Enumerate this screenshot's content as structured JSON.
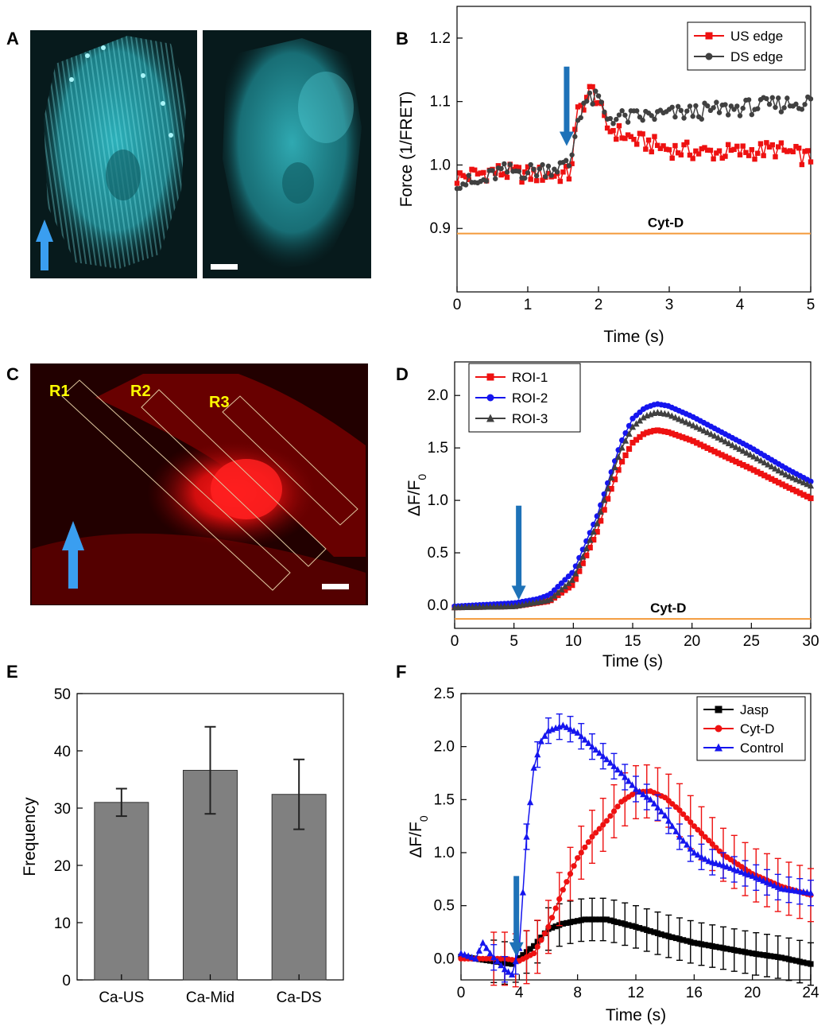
{
  "panel_labels": {
    "A": "A",
    "B": "B",
    "C": "C",
    "D": "D",
    "E": "E",
    "F": "F"
  },
  "colors": {
    "cyan_cell": "#33c6d0",
    "red_cell": "#e01010",
    "arrow_blue": "#1e72b8",
    "arrow_light": "#3a9ef0",
    "red_series": "#ee1111",
    "blue_series": "#1515ee",
    "dark_series": "#404040",
    "black_series": "#000000",
    "orange_line": "#f39a3a",
    "bar_gray": "#808080"
  },
  "panel_a": {
    "arrow_icon": "up-arrow-icon",
    "scale_bar_icon": "scale-bar-icon"
  },
  "panel_c": {
    "roi_labels": [
      "R1",
      "R2",
      "R3"
    ],
    "arrow_icon": "up-arrow-icon"
  },
  "chart_data": [
    {
      "panel": "B",
      "type": "line",
      "xlabel": "Time (s)",
      "ylabel": "Force (1/FRET)",
      "xlim": [
        0,
        5
      ],
      "ylim": [
        0.8,
        1.25
      ],
      "xticks": [
        0,
        1,
        2,
        3,
        4,
        5
      ],
      "yticks": [
        0.9,
        1.0,
        1.1,
        1.2
      ],
      "xtick_labels": [
        "0",
        "1",
        "2",
        "3",
        "4",
        "5"
      ],
      "ytick_labels": [
        "0.9",
        "1.0",
        "1.1",
        "1.2"
      ],
      "legend": {
        "position": "top-right",
        "entries": [
          "US edge",
          "DS edge"
        ]
      },
      "annotation": {
        "text": "Cyt-D",
        "y": 0.892,
        "x_start": 0.0,
        "x_end": 5.0
      },
      "arrow_at": {
        "x": 1.55,
        "y_top": 1.155,
        "y_tip": 1.03
      },
      "series": [
        {
          "name": "US edge",
          "marker": "square",
          "color": "#ee1111",
          "keypoints": [
            [
              0,
              0.98
            ],
            [
              0.5,
              0.99
            ],
            [
              1.0,
              0.985
            ],
            [
              1.6,
              0.985
            ],
            [
              1.7,
              1.08
            ],
            [
              1.8,
              1.1
            ],
            [
              1.9,
              1.12
            ],
            [
              2.0,
              1.1
            ],
            [
              2.1,
              1.06
            ],
            [
              2.5,
              1.04
            ],
            [
              3.0,
              1.025
            ],
            [
              3.5,
              1.02
            ],
            [
              4.0,
              1.02
            ],
            [
              4.5,
              1.025
            ],
            [
              5.0,
              1.01
            ]
          ],
          "noise": 0.014
        },
        {
          "name": "DS edge",
          "marker": "circle",
          "color": "#404040",
          "keypoints": [
            [
              0,
              0.975
            ],
            [
              0.3,
              0.97
            ],
            [
              0.6,
              0.99
            ],
            [
              1.0,
              0.99
            ],
            [
              1.6,
              1.0
            ],
            [
              1.7,
              1.07
            ],
            [
              1.8,
              1.1
            ],
            [
              2.0,
              1.105
            ],
            [
              2.1,
              1.075
            ],
            [
              2.5,
              1.075
            ],
            [
              3.0,
              1.08
            ],
            [
              3.5,
              1.085
            ],
            [
              4.0,
              1.09
            ],
            [
              4.5,
              1.095
            ],
            [
              5.0,
              1.1
            ]
          ],
          "noise": 0.013
        }
      ]
    },
    {
      "panel": "D",
      "type": "line",
      "xlabel": "Time (s)",
      "ylabel": "ΔF/F",
      "ylabel_sub": "0",
      "xlim": [
        0,
        30
      ],
      "ylim": [
        -0.22,
        2.32
      ],
      "xticks": [
        0,
        5,
        10,
        15,
        20,
        25,
        30
      ],
      "yticks": [
        0.0,
        0.5,
        1.0,
        1.5,
        2.0
      ],
      "xtick_labels": [
        "0",
        "5",
        "10",
        "15",
        "20",
        "25",
        "30"
      ],
      "ytick_labels": [
        "0.0",
        "0.5",
        "1.0",
        "1.5",
        "2.0"
      ],
      "legend": {
        "position": "top-left",
        "entries": [
          "ROI-1",
          "ROI-2",
          "ROI-3"
        ]
      },
      "annotation": {
        "text": "Cyt-D",
        "y": -0.13,
        "x_start": 0.0,
        "x_end": 30.0
      },
      "arrow_at": {
        "x": 5.4,
        "y_top": 0.95,
        "y_tip": 0.05
      },
      "series": [
        {
          "name": "ROI-1",
          "marker": "square",
          "color": "#ee1111",
          "keypoints": [
            [
              0,
              -0.02
            ],
            [
              5,
              -0.01
            ],
            [
              8,
              0.04
            ],
            [
              10,
              0.2
            ],
            [
              12,
              0.7
            ],
            [
              13,
              1.05
            ],
            [
              14,
              1.35
            ],
            [
              15,
              1.55
            ],
            [
              16,
              1.64
            ],
            [
              17,
              1.67
            ],
            [
              18,
              1.65
            ],
            [
              20,
              1.57
            ],
            [
              22,
              1.46
            ],
            [
              25,
              1.3
            ],
            [
              28,
              1.13
            ],
            [
              30,
              1.02
            ]
          ],
          "noise": 0.0
        },
        {
          "name": "ROI-2",
          "marker": "circle",
          "color": "#1515ee",
          "keypoints": [
            [
              0,
              -0.01
            ],
            [
              5,
              0.02
            ],
            [
              7,
              0.06
            ],
            [
              8,
              0.1
            ],
            [
              10,
              0.32
            ],
            [
              12,
              0.85
            ],
            [
              13,
              1.2
            ],
            [
              14,
              1.55
            ],
            [
              15,
              1.78
            ],
            [
              16,
              1.88
            ],
            [
              17,
              1.92
            ],
            [
              18,
              1.9
            ],
            [
              20,
              1.8
            ],
            [
              22,
              1.68
            ],
            [
              25,
              1.5
            ],
            [
              28,
              1.3
            ],
            [
              30,
              1.18
            ]
          ],
          "noise": 0.0
        },
        {
          "name": "ROI-3",
          "marker": "triangle",
          "color": "#404040",
          "keypoints": [
            [
              0,
              -0.02
            ],
            [
              5,
              -0.01
            ],
            [
              8,
              0.05
            ],
            [
              10,
              0.25
            ],
            [
              12,
              0.78
            ],
            [
              13,
              1.15
            ],
            [
              14,
              1.48
            ],
            [
              15,
              1.7
            ],
            [
              16,
              1.8
            ],
            [
              17,
              1.84
            ],
            [
              18,
              1.82
            ],
            [
              20,
              1.72
            ],
            [
              22,
              1.61
            ],
            [
              25,
              1.43
            ],
            [
              28,
              1.24
            ],
            [
              30,
              1.14
            ]
          ],
          "noise": 0.0
        }
      ]
    },
    {
      "panel": "E",
      "type": "bar",
      "ylabel": "Frequency",
      "categories": [
        "Ca-US",
        "Ca-Mid",
        "Ca-DS"
      ],
      "values": [
        31.0,
        36.6,
        32.4
      ],
      "errors": [
        2.4,
        7.6,
        6.1
      ],
      "ylim": [
        0,
        50
      ],
      "yticks": [
        0,
        10,
        20,
        30,
        40,
        50
      ],
      "ytick_labels": [
        "0",
        "10",
        "20",
        "30",
        "40",
        "50"
      ]
    },
    {
      "panel": "F",
      "type": "line",
      "xlabel": "Time (s)",
      "ylabel": "ΔF/F",
      "ylabel_sub": "0",
      "xlim": [
        0,
        24
      ],
      "ylim": [
        -0.2,
        2.5
      ],
      "xticks": [
        0,
        4,
        8,
        12,
        16,
        20,
        24
      ],
      "yticks": [
        0.0,
        0.5,
        1.0,
        1.5,
        2.0,
        2.5
      ],
      "xtick_labels": [
        "0",
        "4",
        "8",
        "12",
        "16",
        "20",
        "24"
      ],
      "ytick_labels": [
        "0.0",
        "0.5",
        "1.0",
        "1.5",
        "2.0",
        "2.5"
      ],
      "legend": {
        "position": "top-right",
        "entries": [
          "Jasp",
          "Cyt-D",
          "Control"
        ]
      },
      "arrow_at": {
        "x": 3.8,
        "y_top": 0.78,
        "y_tip": 0.02
      },
      "series": [
        {
          "name": "Jasp",
          "marker": "square",
          "color": "#000000",
          "keypoints": [
            [
              0,
              0.02
            ],
            [
              2,
              -0.02
            ],
            [
              3.5,
              -0.05
            ],
            [
              5,
              0.12
            ],
            [
              6,
              0.28
            ],
            [
              7,
              0.33
            ],
            [
              8.5,
              0.37
            ],
            [
              10,
              0.37
            ],
            [
              12,
              0.3
            ],
            [
              14,
              0.22
            ],
            [
              16,
              0.15
            ],
            [
              18,
              0.1
            ],
            [
              20,
              0.05
            ],
            [
              22,
              0.01
            ],
            [
              24,
              -0.05
            ]
          ],
          "noise": 0.0,
          "err": 0.2
        },
        {
          "name": "Cyt-D",
          "marker": "circle",
          "color": "#ee1111",
          "keypoints": [
            [
              0,
              0.0
            ],
            [
              3,
              0.0
            ],
            [
              4,
              -0.02
            ],
            [
              5,
              0.05
            ],
            [
              6,
              0.3
            ],
            [
              7,
              0.65
            ],
            [
              8,
              0.95
            ],
            [
              9,
              1.15
            ],
            [
              10,
              1.3
            ],
            [
              11,
              1.48
            ],
            [
              12,
              1.57
            ],
            [
              13,
              1.58
            ],
            [
              14,
              1.52
            ],
            [
              15,
              1.4
            ],
            [
              16,
              1.25
            ],
            [
              18,
              0.98
            ],
            [
              20,
              0.8
            ],
            [
              22,
              0.68
            ],
            [
              24,
              0.6
            ]
          ],
          "noise": 0.0,
          "err": 0.25
        },
        {
          "name": "Control",
          "marker": "triangle",
          "color": "#1515ee",
          "keypoints": [
            [
              0,
              0.05
            ],
            [
              1,
              0.0
            ],
            [
              1.5,
              0.15
            ],
            [
              2,
              0.05
            ],
            [
              3,
              -0.1
            ],
            [
              3.5,
              -0.15
            ],
            [
              4,
              0.1
            ],
            [
              4.5,
              1.15
            ],
            [
              5,
              1.8
            ],
            [
              5.5,
              2.05
            ],
            [
              6,
              2.15
            ],
            [
              7,
              2.2
            ],
            [
              8,
              2.13
            ],
            [
              9,
              2.0
            ],
            [
              10,
              1.88
            ],
            [
              11,
              1.75
            ],
            [
              12,
              1.6
            ],
            [
              13,
              1.5
            ],
            [
              14,
              1.35
            ],
            [
              15,
              1.15
            ],
            [
              16,
              1.0
            ],
            [
              17,
              0.92
            ],
            [
              18,
              0.88
            ],
            [
              20,
              0.78
            ],
            [
              22,
              0.66
            ],
            [
              24,
              0.62
            ]
          ],
          "noise": 0.0,
          "err": 0.12
        }
      ]
    }
  ]
}
